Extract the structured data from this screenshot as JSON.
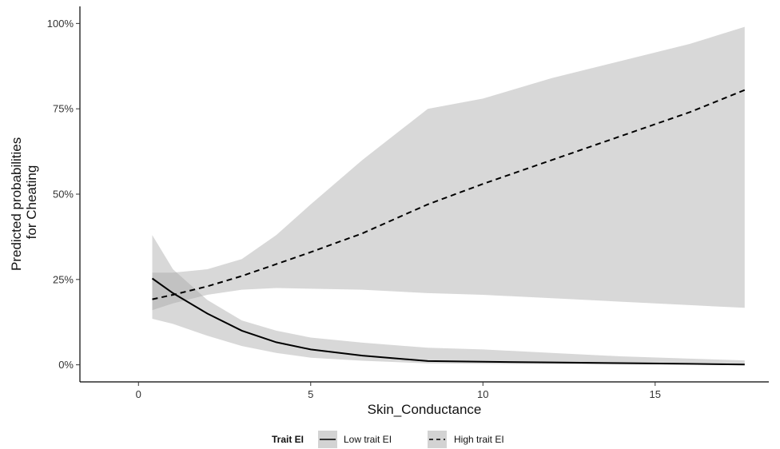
{
  "chart_data": {
    "type": "line",
    "title": "",
    "xlabel": "Skin_Conductance",
    "ylabel_lines": [
      "Predicted probabilities",
      "for Cheating"
    ],
    "xlim": [
      -1.7,
      18.3
    ],
    "ylim": [
      -0.05,
      1.05
    ],
    "xticks": [
      0,
      5,
      10,
      15
    ],
    "xtick_labels": [
      "0",
      "5",
      "10",
      "15"
    ],
    "yticks": [
      0,
      0.25,
      0.5,
      0.75,
      1.0
    ],
    "ytick_labels": [
      "0%",
      "25%",
      "50%",
      "75%",
      "100%"
    ],
    "grid": false,
    "legend_position": "bottom",
    "legend_title": "Trait EI",
    "series": [
      {
        "name": "Low trait EI",
        "line_style": "solid",
        "color": "#000000",
        "ribbon_color": "#d3d3d3",
        "x": [
          0.4,
          1.0,
          2.0,
          3.0,
          4.0,
          5.0,
          6.5,
          8.4,
          10.0,
          12.0,
          14.0,
          16.0,
          17.6
        ],
        "y": [
          0.253,
          0.21,
          0.15,
          0.1,
          0.066,
          0.045,
          0.027,
          0.011,
          0.009,
          0.007,
          0.005,
          0.003,
          0.001
        ],
        "lower": [
          0.135,
          0.12,
          0.085,
          0.055,
          0.035,
          0.021,
          0.012,
          0.004,
          0.003,
          0.002,
          0.001,
          0.0005,
          0.0002
        ],
        "upper": [
          0.38,
          0.28,
          0.19,
          0.13,
          0.1,
          0.08,
          0.065,
          0.05,
          0.045,
          0.035,
          0.025,
          0.018,
          0.013
        ]
      },
      {
        "name": "High trait EI",
        "line_style": "dashed",
        "color": "#000000",
        "ribbon_color": "#d3d3d3",
        "x": [
          0.4,
          1.0,
          2.0,
          3.0,
          4.0,
          5.0,
          6.5,
          8.4,
          10.0,
          12.0,
          14.0,
          16.0,
          17.6
        ],
        "y": [
          0.192,
          0.205,
          0.23,
          0.26,
          0.295,
          0.33,
          0.385,
          0.47,
          0.53,
          0.6,
          0.67,
          0.74,
          0.805
        ],
        "lower": [
          0.16,
          0.18,
          0.205,
          0.22,
          0.225,
          0.223,
          0.22,
          0.21,
          0.205,
          0.195,
          0.185,
          0.175,
          0.167
        ],
        "upper": [
          0.27,
          0.27,
          0.28,
          0.31,
          0.38,
          0.47,
          0.6,
          0.75,
          0.78,
          0.84,
          0.89,
          0.94,
          0.99
        ]
      }
    ]
  }
}
